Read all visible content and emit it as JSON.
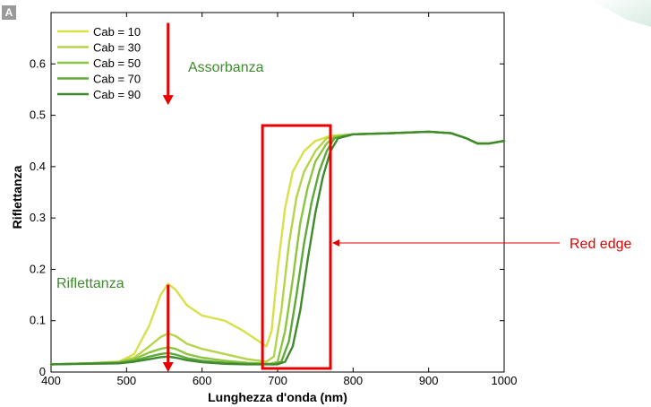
{
  "panel_label": "A",
  "chart_data": {
    "type": "line",
    "title": "",
    "xlabel": "Lunghezza d'onda (nm)",
    "ylabel": "Riflettanza",
    "xlim": [
      400,
      1000
    ],
    "ylim": [
      0,
      0.7
    ],
    "x_ticks": [
      400,
      500,
      600,
      700,
      800,
      900,
      1000
    ],
    "y_ticks": [
      0,
      0.1,
      0.2,
      0.3,
      0.4,
      0.5,
      0.6
    ],
    "x_tick_labels": [
      "400",
      "500",
      "600",
      "700",
      "800",
      "900",
      "1000"
    ],
    "y_tick_labels": [
      "0",
      "0.1",
      "0.2",
      "0.3",
      "0.4",
      "0.5",
      "0.6"
    ],
    "grid": false,
    "legend_position": "top-left",
    "series": [
      {
        "name": "Cab = 10",
        "color": "#d8e04a",
        "points": [
          [
            400,
            0.015
          ],
          [
            450,
            0.017
          ],
          [
            490,
            0.02
          ],
          [
            510,
            0.035
          ],
          [
            530,
            0.09
          ],
          [
            545,
            0.15
          ],
          [
            555,
            0.172
          ],
          [
            565,
            0.16
          ],
          [
            580,
            0.13
          ],
          [
            600,
            0.11
          ],
          [
            630,
            0.1
          ],
          [
            655,
            0.08
          ],
          [
            675,
            0.06
          ],
          [
            685,
            0.05
          ],
          [
            692,
            0.08
          ],
          [
            700,
            0.2
          ],
          [
            710,
            0.32
          ],
          [
            720,
            0.39
          ],
          [
            735,
            0.43
          ],
          [
            750,
            0.45
          ],
          [
            770,
            0.46
          ],
          [
            800,
            0.463
          ],
          [
            850,
            0.465
          ],
          [
            900,
            0.468
          ],
          [
            930,
            0.465
          ],
          [
            950,
            0.455
          ],
          [
            965,
            0.445
          ],
          [
            980,
            0.445
          ],
          [
            1000,
            0.45
          ]
        ]
      },
      {
        "name": "Cab = 30",
        "color": "#b5d44a",
        "points": [
          [
            400,
            0.015
          ],
          [
            450,
            0.017
          ],
          [
            490,
            0.02
          ],
          [
            510,
            0.028
          ],
          [
            530,
            0.05
          ],
          [
            545,
            0.068
          ],
          [
            555,
            0.075
          ],
          [
            565,
            0.07
          ],
          [
            580,
            0.055
          ],
          [
            600,
            0.045
          ],
          [
            630,
            0.035
          ],
          [
            660,
            0.025
          ],
          [
            685,
            0.02
          ],
          [
            695,
            0.03
          ],
          [
            705,
            0.12
          ],
          [
            715,
            0.25
          ],
          [
            725,
            0.34
          ],
          [
            735,
            0.39
          ],
          [
            750,
            0.43
          ],
          [
            765,
            0.455
          ],
          [
            780,
            0.46
          ],
          [
            800,
            0.463
          ],
          [
            850,
            0.465
          ],
          [
            900,
            0.468
          ],
          [
            930,
            0.465
          ],
          [
            950,
            0.455
          ],
          [
            965,
            0.445
          ],
          [
            980,
            0.445
          ],
          [
            1000,
            0.45
          ]
        ]
      },
      {
        "name": "Cab = 50",
        "color": "#8cc63f",
        "points": [
          [
            400,
            0.015
          ],
          [
            450,
            0.017
          ],
          [
            490,
            0.019
          ],
          [
            510,
            0.025
          ],
          [
            530,
            0.038
          ],
          [
            545,
            0.045
          ],
          [
            555,
            0.048
          ],
          [
            565,
            0.045
          ],
          [
            580,
            0.035
          ],
          [
            600,
            0.028
          ],
          [
            630,
            0.022
          ],
          [
            660,
            0.018
          ],
          [
            690,
            0.016
          ],
          [
            700,
            0.02
          ],
          [
            710,
            0.08
          ],
          [
            720,
            0.18
          ],
          [
            730,
            0.29
          ],
          [
            740,
            0.36
          ],
          [
            750,
            0.41
          ],
          [
            765,
            0.445
          ],
          [
            775,
            0.458
          ],
          [
            800,
            0.463
          ],
          [
            850,
            0.465
          ],
          [
            900,
            0.468
          ],
          [
            930,
            0.465
          ],
          [
            950,
            0.455
          ],
          [
            965,
            0.445
          ],
          [
            980,
            0.445
          ],
          [
            1000,
            0.45
          ]
        ]
      },
      {
        "name": "Cab = 70",
        "color": "#5fa83a",
        "points": [
          [
            400,
            0.015
          ],
          [
            450,
            0.017
          ],
          [
            490,
            0.018
          ],
          [
            510,
            0.022
          ],
          [
            530,
            0.03
          ],
          [
            545,
            0.035
          ],
          [
            555,
            0.037
          ],
          [
            565,
            0.034
          ],
          [
            580,
            0.027
          ],
          [
            600,
            0.022
          ],
          [
            630,
            0.018
          ],
          [
            660,
            0.016
          ],
          [
            695,
            0.015
          ],
          [
            705,
            0.02
          ],
          [
            715,
            0.06
          ],
          [
            725,
            0.15
          ],
          [
            735,
            0.25
          ],
          [
            745,
            0.33
          ],
          [
            755,
            0.39
          ],
          [
            765,
            0.43
          ],
          [
            775,
            0.455
          ],
          [
            800,
            0.463
          ],
          [
            850,
            0.465
          ],
          [
            900,
            0.468
          ],
          [
            930,
            0.465
          ],
          [
            950,
            0.455
          ],
          [
            965,
            0.445
          ],
          [
            980,
            0.445
          ],
          [
            1000,
            0.45
          ]
        ]
      },
      {
        "name": "Cab = 90",
        "color": "#3f8a2e",
        "points": [
          [
            400,
            0.015
          ],
          [
            450,
            0.016
          ],
          [
            490,
            0.017
          ],
          [
            510,
            0.02
          ],
          [
            530,
            0.025
          ],
          [
            545,
            0.029
          ],
          [
            555,
            0.03
          ],
          [
            565,
            0.028
          ],
          [
            580,
            0.023
          ],
          [
            600,
            0.019
          ],
          [
            630,
            0.016
          ],
          [
            660,
            0.015
          ],
          [
            700,
            0.015
          ],
          [
            710,
            0.02
          ],
          [
            720,
            0.05
          ],
          [
            730,
            0.12
          ],
          [
            740,
            0.22
          ],
          [
            750,
            0.31
          ],
          [
            760,
            0.38
          ],
          [
            770,
            0.43
          ],
          [
            780,
            0.455
          ],
          [
            800,
            0.463
          ],
          [
            850,
            0.465
          ],
          [
            900,
            0.468
          ],
          [
            930,
            0.465
          ],
          [
            950,
            0.455
          ],
          [
            965,
            0.445
          ],
          [
            980,
            0.445
          ],
          [
            1000,
            0.45
          ]
        ]
      }
    ],
    "annotations": {
      "absorbance_label": "Assorbanza",
      "reflectance_label": "Riflettanza",
      "red_edge_label": "Red edge",
      "absorbance_arrow": {
        "x": 555,
        "y_from": 0.68,
        "y_to": 0.52
      },
      "reflectance_arrow": {
        "x": 555,
        "y_from": 0.17,
        "y_to": 0.0
      },
      "red_edge_box": {
        "x_from": 680,
        "x_to": 770,
        "y_from": 0.0,
        "y_to": 0.48
      },
      "arrow_color": "#e60000",
      "label_color": "#3f8a2e"
    }
  }
}
